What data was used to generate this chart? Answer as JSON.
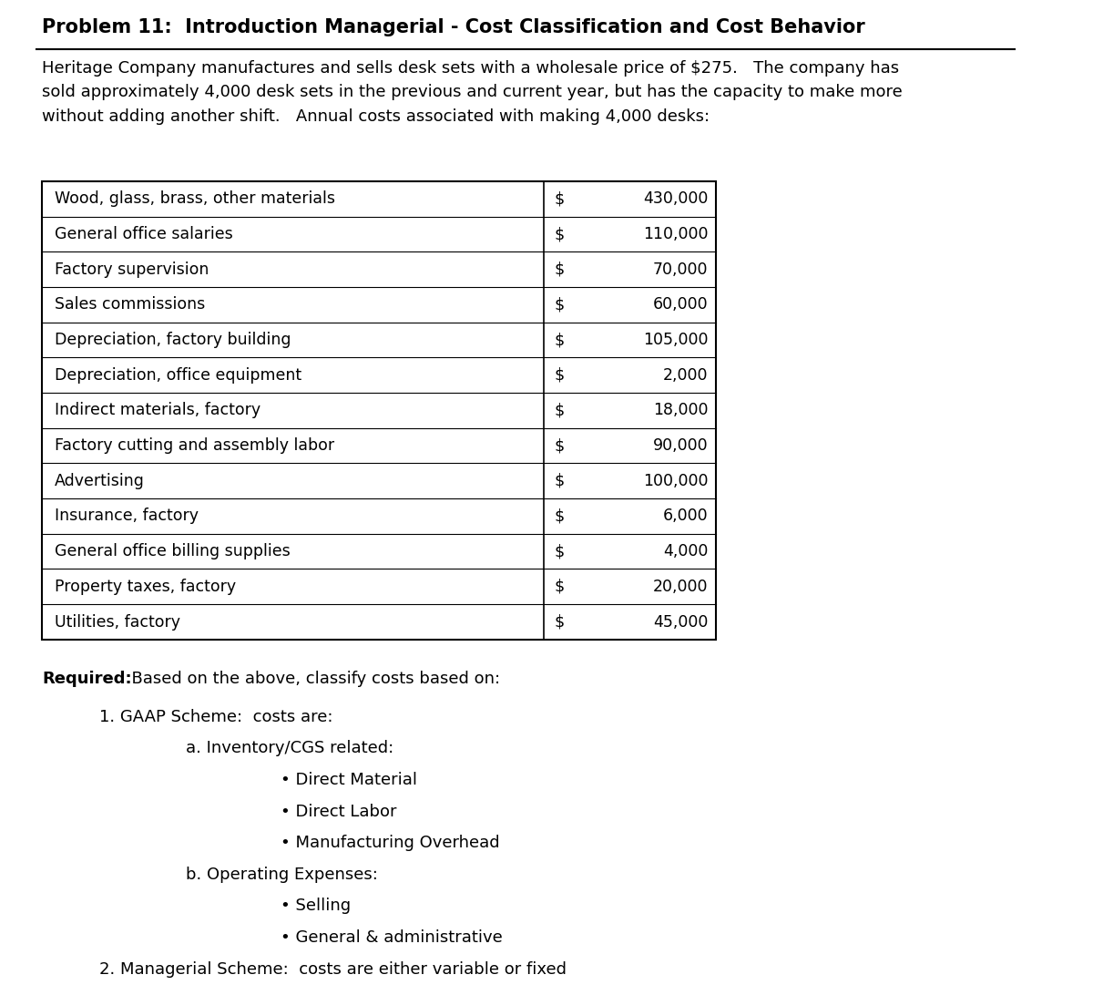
{
  "title": "Problem 11:  Introduction Managerial - Cost Classification and Cost Behavior",
  "intro_text": "Heritage Company manufactures and sells desk sets with a wholesale price of $275.   The company has\nsold approximately 4,000 desk sets in the previous and current year, but has the capacity to make more\nwithout adding another shift.   Annual costs associated with making 4,000 desks:",
  "table_rows": [
    [
      "Wood, glass, brass, other materials",
      "$",
      "430,000"
    ],
    [
      "General office salaries",
      "$",
      "110,000"
    ],
    [
      "Factory supervision",
      "$",
      "70,000"
    ],
    [
      "Sales commissions",
      "$",
      "60,000"
    ],
    [
      "Depreciation, factory building",
      "$",
      "105,000"
    ],
    [
      "Depreciation, office equipment",
      "$",
      "2,000"
    ],
    [
      "Indirect materials, factory",
      "$",
      "18,000"
    ],
    [
      "Factory cutting and assembly labor",
      "$",
      "90,000"
    ],
    [
      "Advertising",
      "$",
      "100,000"
    ],
    [
      "Insurance, factory",
      "$",
      "6,000"
    ],
    [
      "General office billing supplies",
      "$",
      "4,000"
    ],
    [
      "Property taxes, factory",
      "$",
      "20,000"
    ],
    [
      "Utilities, factory",
      "$",
      "45,000"
    ]
  ],
  "required_label": "Required:",
  "required_text": "  Based on the above, classify costs based on:",
  "list_items": [
    {
      "level": 1,
      "marker": "1.",
      "text": "GAAP Scheme:  costs are:"
    },
    {
      "level": 2,
      "marker": "a.",
      "text": "Inventory/CGS related:"
    },
    {
      "level": 3,
      "marker": "•",
      "text": "Direct Material"
    },
    {
      "level": 3,
      "marker": "•",
      "text": "Direct Labor"
    },
    {
      "level": 3,
      "marker": "•",
      "text": "Manufacturing Overhead"
    },
    {
      "level": 2,
      "marker": "b.",
      "text": "Operating Expenses:"
    },
    {
      "level": 3,
      "marker": "•",
      "text": "Selling"
    },
    {
      "level": 3,
      "marker": "•",
      "text": "General & administrative"
    },
    {
      "level": 1,
      "marker": "2.",
      "text": "Managerial Scheme:  costs are either variable or fixed"
    }
  ],
  "bg_color": "#ffffff",
  "text_color": "#000000",
  "font_family": "DejaVu Sans",
  "title_fontsize": 15,
  "body_fontsize": 13,
  "table_fontsize": 12.5
}
